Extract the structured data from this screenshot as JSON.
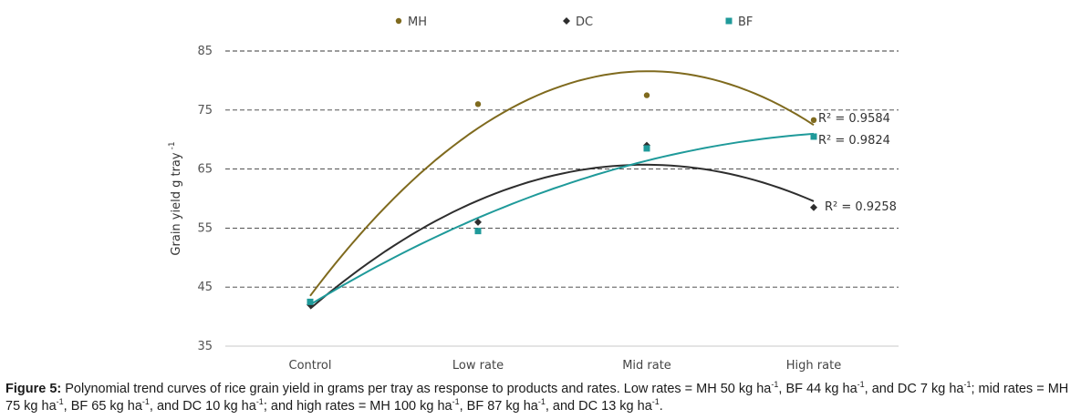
{
  "chart_data": {
    "type": "scatter",
    "title": "",
    "xlabel": "",
    "ylabel": "Grain yield g tray",
    "ylabel_sup": "-1",
    "ylim": [
      35,
      85
    ],
    "yticks": [
      35,
      45,
      55,
      65,
      75,
      85
    ],
    "categories": [
      "Control",
      "Low rate",
      "Mid rate",
      "High rate"
    ],
    "grid": true,
    "legend_position": "top",
    "series": [
      {
        "name": "MH",
        "marker": "circle",
        "color": "#7f6a1e",
        "values": [
          42.5,
          76.0,
          77.5,
          73.3
        ],
        "trend": [
          43.5,
          72.0,
          81.5,
          72.5
        ],
        "r2_label": "R² = 0.9584"
      },
      {
        "name": "DC",
        "marker": "diamond",
        "color": "#2e2e2e",
        "values": [
          42.0,
          56.0,
          69.0,
          58.5
        ],
        "trend": [
          41.3,
          59.8,
          65.6,
          59.6
        ],
        "r2_label": "R² = 0.9258"
      },
      {
        "name": "BF",
        "marker": "square",
        "color": "#1f9a9a",
        "values": [
          42.5,
          54.5,
          68.5,
          70.5
        ],
        "trend": [
          42.0,
          56.8,
          66.3,
          71.0
        ],
        "r2_label": "R² = 0.9824"
      }
    ]
  },
  "caption": {
    "label": "Figure 5:",
    "p1": " Polynomial trend curves of rice grain yield in grams per tray as response to products and rates. Low rates = MH 50 kg ha",
    "s1": "-1",
    "p2": ", BF 44 kg ha",
    "s2": "-1",
    "p3": ", and DC 7 kg ha",
    "s3": "-1",
    "p4": "; mid rates = MH 75 kg ha",
    "s4": "-1",
    "p5": ", BF 65 kg ha",
    "s5": "-1",
    "p6": ", and DC 10 kg ha",
    "s6": "-1",
    "p7": "; and high rates = MH 100 kg ha",
    "s7": "-1",
    "p8": ", BF 87 kg ha",
    "s8": "-1",
    "p9": ", and DC 13 kg ha",
    "s9": "-1",
    "p10": "."
  }
}
